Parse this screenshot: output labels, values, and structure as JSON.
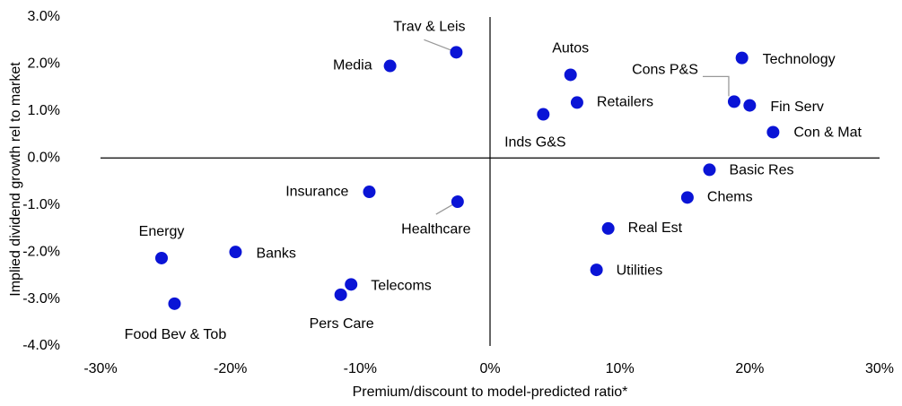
{
  "chart_data": {
    "type": "scatter",
    "x_label": "Premium/discount to model-predicted ratio*",
    "y_label": "Implied dividend growth rel to market",
    "labels": [
      "Trav & Leis",
      "Media",
      "Autos",
      "Retailers",
      "Inds G&S",
      "Technology",
      "Cons P&S",
      "Fin Serv",
      "Con & Mat",
      "Basic Res",
      "Chems",
      "Insurance",
      "Healthcare",
      "Real Est",
      "Energy",
      "Banks",
      "Utilities",
      "Telecoms",
      "Pers Care",
      "Food Bev & Tob"
    ],
    "x": [
      -2.6,
      -7.7,
      6.2,
      6.7,
      4.1,
      19.4,
      18.8,
      20.0,
      21.8,
      16.9,
      15.2,
      -9.3,
      -2.5,
      9.1,
      -25.3,
      -19.6,
      8.2,
      -10.7,
      -11.5,
      -24.3
    ],
    "y": [
      2.25,
      1.96,
      1.77,
      1.18,
      0.93,
      2.13,
      1.2,
      1.12,
      0.55,
      -0.25,
      -0.84,
      -0.72,
      -0.93,
      -1.5,
      -2.13,
      -2.0,
      -2.38,
      -2.69,
      -2.91,
      -3.1
    ],
    "color": "#0a14d6",
    "xlim": [
      -30,
      30
    ],
    "xticks": [
      {
        "value": -30,
        "label": "-30%"
      },
      {
        "value": -20,
        "label": "-20%"
      },
      {
        "value": -10,
        "label": "-10%"
      },
      {
        "value": 0,
        "label": "0%"
      },
      {
        "value": 10,
        "label": "10%"
      },
      {
        "value": 20,
        "label": "20%"
      },
      {
        "value": 30,
        "label": "30%"
      }
    ],
    "ylim": [
      -4,
      3
    ],
    "yticks": [
      {
        "value": -4,
        "label": "-4.0%"
      },
      {
        "value": -3,
        "label": "-3.0%"
      },
      {
        "value": -2,
        "label": "-2.0%"
      },
      {
        "value": -1,
        "label": "-1.0%"
      },
      {
        "value": 0,
        "label": "0.0%"
      },
      {
        "value": 1,
        "label": "1.0%"
      },
      {
        "value": 2,
        "label": "2.0%"
      },
      {
        "value": 3,
        "label": "3.0%"
      }
    ]
  }
}
